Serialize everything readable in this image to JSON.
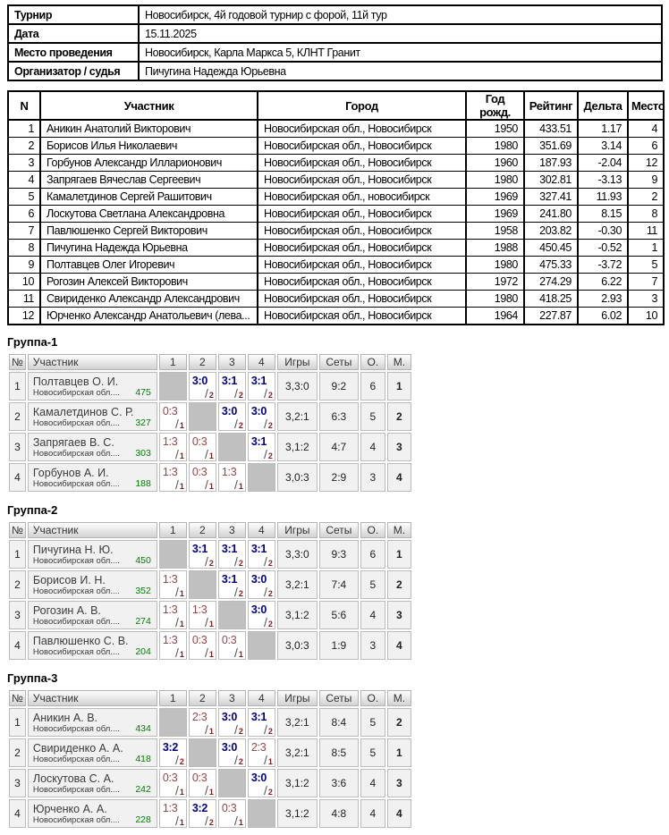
{
  "info": {
    "rows": [
      {
        "label": "Турнир",
        "value": "Новосибирск, 4й годовой турнир с форой, 11й тур"
      },
      {
        "label": "Дата",
        "value": "15.11.2025"
      },
      {
        "label": "Место проведения",
        "value": "Новосибирск, Карла Маркса 5, КЛНТ Гранит"
      },
      {
        "label": "Организатор / судья",
        "value": "Пичугина Надежда Юрьевна"
      }
    ]
  },
  "participants": {
    "headers": [
      "N",
      "Участник",
      "Город",
      "Год рожд.",
      "Рейтинг",
      "Дельта",
      "Место"
    ],
    "rows": [
      [
        "1",
        "Аникин Анатолий Викторович",
        "Новосибирская обл., Новосибирск",
        "1950",
        "433.51",
        "1.17",
        "4"
      ],
      [
        "2",
        "Борисов Илья Николаевич",
        "Новосибирская обл., Новосибирск",
        "1980",
        "351.69",
        "3.14",
        "6"
      ],
      [
        "3",
        "Горбунов Александр Илларионович",
        "Новосибирская обл., Новосибирск",
        "1960",
        "187.93",
        "-2.04",
        "12"
      ],
      [
        "4",
        "Запрягаев Вячеслав Сергеевич",
        "Новосибирская обл., Новосибирск",
        "1980",
        "302.81",
        "-3.13",
        "9"
      ],
      [
        "5",
        "Камалетдинов Сергей Рашитович",
        "Новосибирская обл., новосибирск",
        "1969",
        "327.41",
        "11.93",
        "2"
      ],
      [
        "6",
        "Лоскутова Светлана Александровна",
        "Новосибирская обл., Новосибирск",
        "1969",
        "241.80",
        "8.15",
        "8"
      ],
      [
        "7",
        "Павлюшенко Сергей Викторович",
        "Новосибирская обл., Новосибирск",
        "1958",
        "203.82",
        "-0.30",
        "11"
      ],
      [
        "8",
        "Пичугина Надежда Юрьевна",
        "Новосибирская обл., Новосибирск",
        "1988",
        "450.45",
        "-0.52",
        "1"
      ],
      [
        "9",
        "Полтавцев Олег Игоревич",
        "Новосибирская обл., Новосибирск",
        "1980",
        "475.33",
        "-3.72",
        "5"
      ],
      [
        "10",
        "Рогозин Алексей Викторович",
        "Новосибирская обл., Новосибирск",
        "1972",
        "274.29",
        "6.22",
        "7"
      ],
      [
        "11",
        "Свириденко Александр Александрович",
        "Новосибирская обл., Новосибирск",
        "1980",
        "418.25",
        "2.93",
        "3"
      ],
      [
        "12",
        "Юрченко Александр Анатольевич (лева...",
        "Новосибирская обл., Новосибирск",
        "1964",
        "227.87",
        "6.02",
        "10"
      ]
    ]
  },
  "groups": [
    {
      "title": "Группа-1",
      "headers": [
        "№",
        "Участник",
        "1",
        "2",
        "3",
        "4",
        "Игры",
        "Сеты",
        "О.",
        "М."
      ],
      "rows": [
        {
          "num": "1",
          "name": "Полтавцев О. И.",
          "region": "Новосибирская обл....",
          "rating": "475",
          "cells": [
            {
              "type": "self"
            },
            {
              "type": "win",
              "score": "3:0",
              "fora": "2"
            },
            {
              "type": "win",
              "score": "3:1",
              "fora": "2"
            },
            {
              "type": "win",
              "score": "3:1",
              "fora": "2"
            }
          ],
          "games": "3,3:0",
          "sets": "9:2",
          "points": "6",
          "place": "1"
        },
        {
          "num": "2",
          "name": "Камалетдинов С. Р.",
          "region": "Новосибирская обл....",
          "rating": "327",
          "cells": [
            {
              "type": "loss",
              "score": "0:3",
              "fora": "1"
            },
            {
              "type": "self"
            },
            {
              "type": "win",
              "score": "3:0",
              "fora": "2"
            },
            {
              "type": "win",
              "score": "3:0",
              "fora": "2"
            }
          ],
          "games": "3,2:1",
          "sets": "6:3",
          "points": "5",
          "place": "2"
        },
        {
          "num": "3",
          "name": "Запрягаев В. С.",
          "region": "Новосибирская обл....",
          "rating": "303",
          "cells": [
            {
              "type": "loss",
              "score": "1:3",
              "fora": "1"
            },
            {
              "type": "loss",
              "score": "0:3",
              "fora": "1"
            },
            {
              "type": "self"
            },
            {
              "type": "win",
              "score": "3:1",
              "fora": "2"
            }
          ],
          "games": "3,1:2",
          "sets": "4:7",
          "points": "4",
          "place": "3"
        },
        {
          "num": "4",
          "name": "Горбунов А. И.",
          "region": "Новосибирская обл....",
          "rating": "188",
          "cells": [
            {
              "type": "loss",
              "score": "1:3",
              "fora": "1"
            },
            {
              "type": "loss",
              "score": "0:3",
              "fora": "1"
            },
            {
              "type": "loss",
              "score": "1:3",
              "fora": "1"
            },
            {
              "type": "self"
            }
          ],
          "games": "3,0:3",
          "sets": "2:9",
          "points": "3",
          "place": "4"
        }
      ]
    },
    {
      "title": "Группа-2",
      "headers": [
        "№",
        "Участник",
        "1",
        "2",
        "3",
        "4",
        "Игры",
        "Сеты",
        "О.",
        "М."
      ],
      "rows": [
        {
          "num": "1",
          "name": "Пичугина Н. Ю.",
          "region": "Новосибирская обл....",
          "rating": "450",
          "cells": [
            {
              "type": "self"
            },
            {
              "type": "win",
              "score": "3:1",
              "fora": "2"
            },
            {
              "type": "win",
              "score": "3:1",
              "fora": "2"
            },
            {
              "type": "win",
              "score": "3:1",
              "fora": "2"
            }
          ],
          "games": "3,3:0",
          "sets": "9:3",
          "points": "6",
          "place": "1"
        },
        {
          "num": "2",
          "name": "Борисов И. Н.",
          "region": "Новосибирская обл....",
          "rating": "352",
          "cells": [
            {
              "type": "loss",
              "score": "1:3",
              "fora": "1"
            },
            {
              "type": "self"
            },
            {
              "type": "win",
              "score": "3:1",
              "fora": "2"
            },
            {
              "type": "win",
              "score": "3:0",
              "fora": "2"
            }
          ],
          "games": "3,2:1",
          "sets": "7:4",
          "points": "5",
          "place": "2"
        },
        {
          "num": "3",
          "name": "Рогозин А. В.",
          "region": "Новосибирская обл....",
          "rating": "274",
          "cells": [
            {
              "type": "loss",
              "score": "1:3",
              "fora": "1"
            },
            {
              "type": "loss",
              "score": "1:3",
              "fora": "1"
            },
            {
              "type": "self"
            },
            {
              "type": "win",
              "score": "3:0",
              "fora": "2"
            }
          ],
          "games": "3,1:2",
          "sets": "5:6",
          "points": "4",
          "place": "3"
        },
        {
          "num": "4",
          "name": "Павлюшенко С. В.",
          "region": "Новосибирская обл....",
          "rating": "204",
          "cells": [
            {
              "type": "loss",
              "score": "1:3",
              "fora": "1"
            },
            {
              "type": "loss",
              "score": "0:3",
              "fora": "1"
            },
            {
              "type": "loss",
              "score": "0:3",
              "fora": "1"
            },
            {
              "type": "self"
            }
          ],
          "games": "3,0:3",
          "sets": "1:9",
          "points": "3",
          "place": "4"
        }
      ]
    },
    {
      "title": "Группа-3",
      "headers": [
        "№",
        "Участник",
        "1",
        "2",
        "3",
        "4",
        "Игры",
        "Сеты",
        "О.",
        "М."
      ],
      "rows": [
        {
          "num": "1",
          "name": "Аникин А. В.",
          "region": "Новосибирская обл....",
          "rating": "434",
          "cells": [
            {
              "type": "self"
            },
            {
              "type": "loss",
              "score": "2:3",
              "fora": "1"
            },
            {
              "type": "win",
              "score": "3:0",
              "fora": "2"
            },
            {
              "type": "win",
              "score": "3:1",
              "fora": "2"
            }
          ],
          "games": "3,2:1",
          "sets": "8:4",
          "points": "5",
          "place": "2"
        },
        {
          "num": "2",
          "name": "Свириденко А. А.",
          "region": "Новосибирская обл....",
          "rating": "418",
          "cells": [
            {
              "type": "win",
              "score": "3:2",
              "fora": "2"
            },
            {
              "type": "self"
            },
            {
              "type": "win",
              "score": "3:0",
              "fora": "2"
            },
            {
              "type": "loss",
              "score": "2:3",
              "fora": "1"
            }
          ],
          "games": "3,2:1",
          "sets": "8:5",
          "points": "5",
          "place": "1"
        },
        {
          "num": "3",
          "name": "Лоскутова С. А.",
          "region": "Новосибирская обл....",
          "rating": "242",
          "cells": [
            {
              "type": "loss",
              "score": "0:3",
              "fora": "1"
            },
            {
              "type": "loss",
              "score": "0:3",
              "fora": "1"
            },
            {
              "type": "self"
            },
            {
              "type": "win",
              "score": "3:0",
              "fora": "2"
            }
          ],
          "games": "3,1:2",
          "sets": "3:6",
          "points": "4",
          "place": "3"
        },
        {
          "num": "4",
          "name": "Юрченко А. А.",
          "region": "Новосибирская обл....",
          "rating": "228",
          "cells": [
            {
              "type": "loss",
              "score": "1:3",
              "fora": "1"
            },
            {
              "type": "win",
              "score": "3:2",
              "fora": "2"
            },
            {
              "type": "loss",
              "score": "0:3",
              "fora": "1"
            },
            {
              "type": "self"
            }
          ],
          "games": "3,1:2",
          "sets": "4:8",
          "points": "4",
          "place": "4"
        }
      ]
    }
  ],
  "colors": {
    "win_score": "#00008b",
    "loss_score": "#9c4343",
    "fora_digit": "#8b1a1a",
    "rating_green": "#008000",
    "place_navy": "#1a1a8c",
    "self_cell_gray": "#c0c0c0",
    "info_cell_gray": "#f1f1f1",
    "table_border_black": "#000000",
    "group_border_gray": "#bbbbbb"
  }
}
